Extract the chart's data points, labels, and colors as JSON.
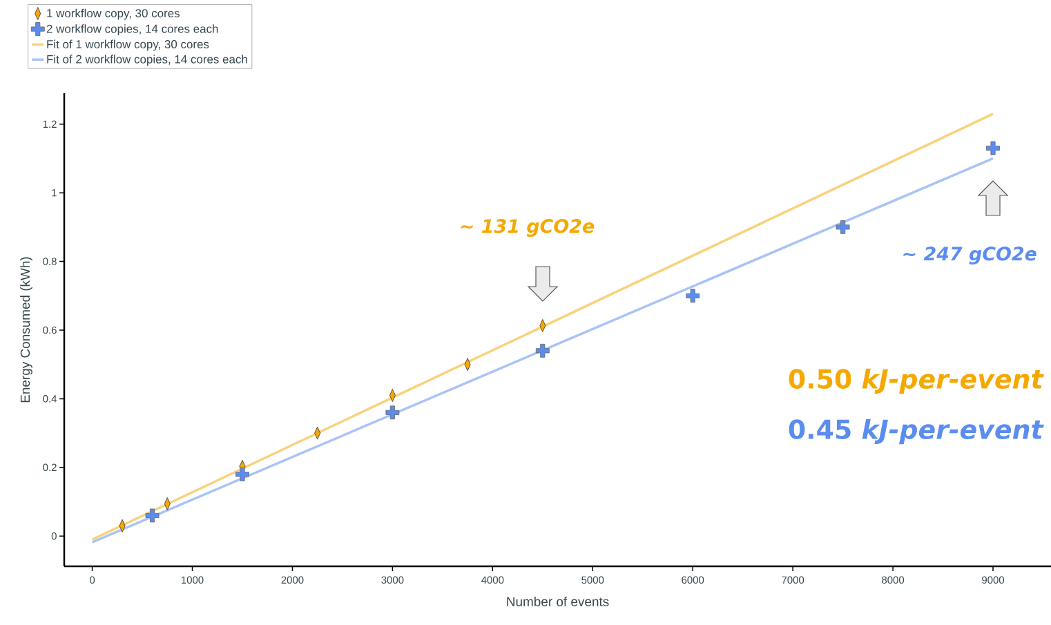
{
  "chart_data": {
    "type": "scatter",
    "xlabel": "Number of events",
    "ylabel": "Energy Consumed (kWh)",
    "xlim": [
      -280,
      9580
    ],
    "ylim": [
      -0.088,
      1.29
    ],
    "xticks": [
      0,
      1000,
      2000,
      3000,
      4000,
      5000,
      6000,
      7000,
      8000,
      9000
    ],
    "yticks": [
      0,
      0.2,
      0.4,
      0.6,
      0.8,
      1,
      1.2
    ],
    "grid": false,
    "legend": "top left",
    "series": [
      {
        "name": "1 workflow copy, 30 cores",
        "type": "scatter",
        "marker": "diamond",
        "color": "#f5a800",
        "x": [
          300,
          750,
          1500,
          2250,
          3000,
          3750,
          4500
        ],
        "values": [
          0.03,
          0.094,
          0.203,
          0.3,
          0.41,
          0.5,
          0.613
        ]
      },
      {
        "name": "2 workflow copies, 14 cores each",
        "type": "scatter",
        "marker": "cross",
        "color": "#5b8def",
        "x": [
          600,
          1500,
          3000,
          4500,
          6000,
          7500,
          9000
        ],
        "values": [
          0.06,
          0.18,
          0.36,
          0.54,
          0.7,
          0.9,
          1.13
        ]
      },
      {
        "name": "Fit of 1 workflow copy, 30 cores",
        "type": "line",
        "marker": "none",
        "line_style": "solid",
        "color": "#f8d27c",
        "x": [
          0,
          9000
        ],
        "values": [
          -0.01,
          1.23
        ]
      },
      {
        "name": "Fit of 2 workflow copies, 14 cores each",
        "type": "line",
        "marker": "none",
        "line_style": "solid",
        "color": "#a9c3f6",
        "x": [
          0,
          9000
        ],
        "values": [
          -0.018,
          1.1
        ]
      }
    ],
    "annotations": [
      "~ 131 gCO2e",
      "~ 247 gCO2e",
      "0.50 *kJ-per-event*",
      "0.45 *kJ-per-event*"
    ]
  }
}
